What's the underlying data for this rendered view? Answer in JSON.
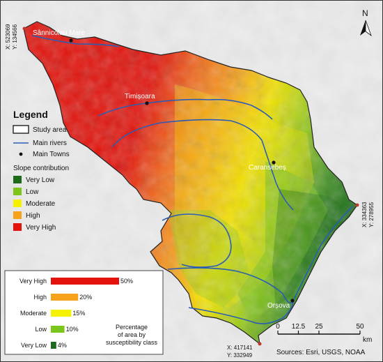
{
  "coordinates": {
    "top_left": [
      "X: 523069",
      "Y: 134566"
    ],
    "right": [
      "X: 334363",
      "Y: 278955"
    ],
    "bottom": [
      "X: 417141",
      "Y: 332949"
    ]
  },
  "north_arrow": {
    "label": "N"
  },
  "towns": [
    "Sânnicolau Mare",
    "Timișoara",
    "Caransebeș",
    "Orșova"
  ],
  "legend": {
    "title": "Legend",
    "items": [
      {
        "label": "Study area",
        "symbol": "polygon"
      },
      {
        "label": "Main rivers",
        "symbol": "line"
      },
      {
        "label": "Main Towns",
        "symbol": "point"
      }
    ],
    "slope_title": "Slope contribution",
    "classes": [
      {
        "label": "Very Low",
        "color": "#1b6b1b"
      },
      {
        "label": "Low",
        "color": "#7cc51a"
      },
      {
        "label": "Moderate",
        "color": "#f5f200"
      },
      {
        "label": "High",
        "color": "#f7a21b"
      },
      {
        "label": "Very High",
        "color": "#e3120b"
      }
    ]
  },
  "chart_data": {
    "type": "bar",
    "orientation": "horizontal",
    "categories": [
      "Very High",
      "High",
      "Moderate",
      "Low",
      "Very Low"
    ],
    "values": [
      50,
      20,
      15,
      10,
      4
    ],
    "value_labels": [
      "50%",
      "20%",
      "15%",
      "10%",
      "4%"
    ],
    "colors": [
      "#e3120b",
      "#f7a21b",
      "#f5f200",
      "#7cc51a",
      "#1b6b1b"
    ],
    "caption": [
      "Percentage",
      "of area by",
      "susceptibility class"
    ]
  },
  "scale_bar": {
    "ticks": [
      "0",
      "12.5",
      "25",
      "50"
    ],
    "unit": "km"
  },
  "sources": "Sources: Esri, USGS, NOAA"
}
